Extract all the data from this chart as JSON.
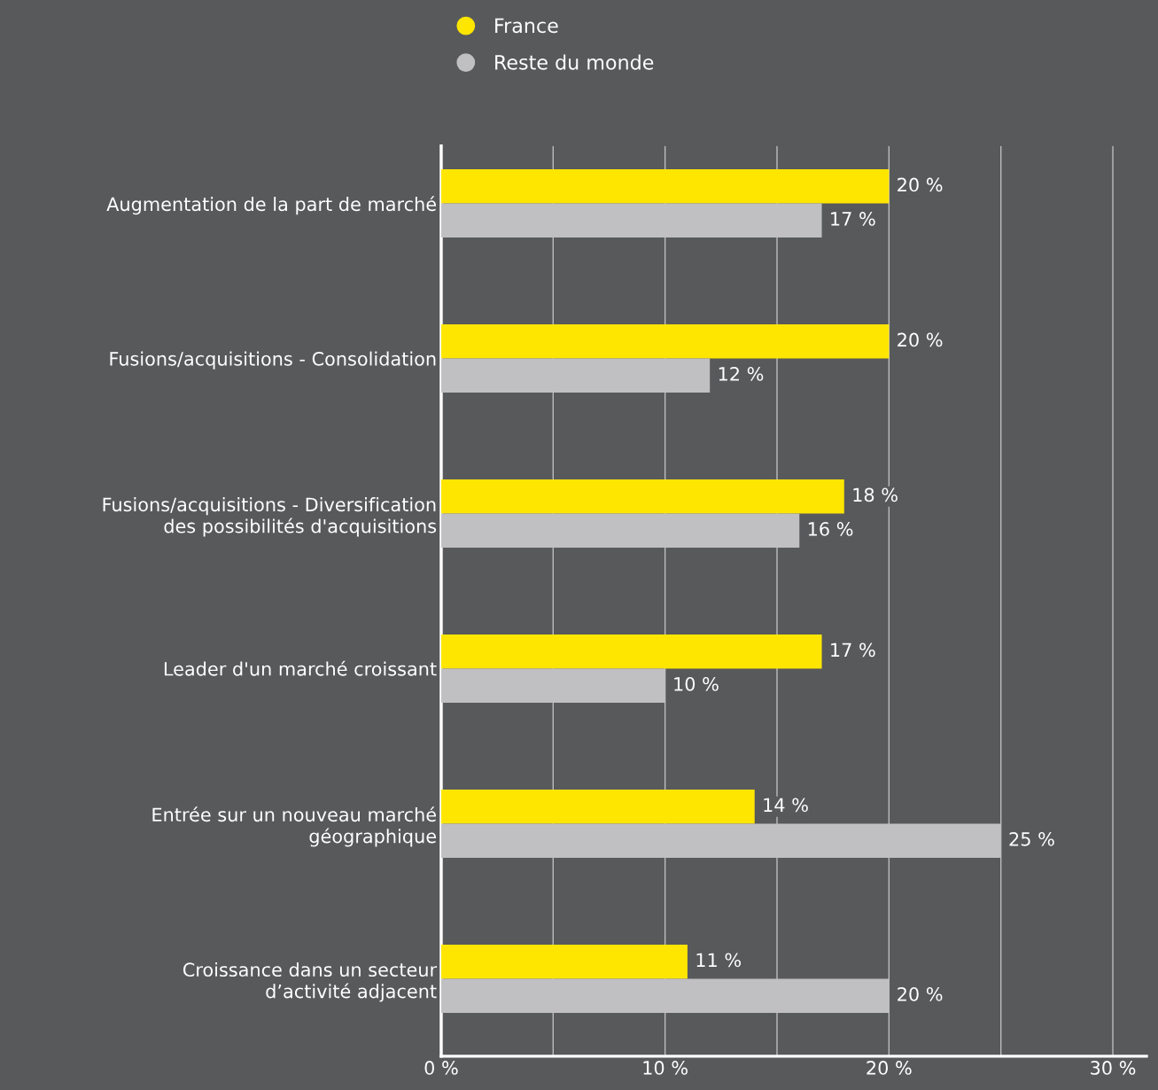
{
  "chart_data": {
    "type": "bar",
    "orientation": "horizontal",
    "categories": [
      "Augmentation de la part de marché",
      "Fusions/acquisitions - Consolidation",
      "Fusions/acquisitions - Diversification\ndes possibilités d'acquisitions",
      "Leader d'un marché croissant",
      "Entrée sur un nouveau marché\ngéographique",
      "Croissance dans un secteur\nd’activité adjacent"
    ],
    "series": [
      {
        "name": "France",
        "color": "#ffe600",
        "values": [
          20,
          20,
          18,
          17,
          14,
          11
        ],
        "value_labels": [
          "20 %",
          "20 %",
          "18 %",
          "17 %",
          "14 %",
          "11 %"
        ]
      },
      {
        "name": "Reste du monde",
        "color": "#c0c0c2",
        "values": [
          17,
          12,
          16,
          10,
          25,
          20
        ],
        "value_labels": [
          "17 %",
          "12 %",
          "16 %",
          "10 %",
          "25 %",
          "20 %"
        ]
      }
    ],
    "xlim": [
      0,
      31.5
    ],
    "xticks": [
      {
        "value": 0,
        "label": "0 %"
      },
      {
        "value": 5,
        "label": null
      },
      {
        "value": 10,
        "label": "10 %"
      },
      {
        "value": 15,
        "label": null
      },
      {
        "value": 20,
        "label": "20 %"
      },
      {
        "value": 25,
        "label": null
      },
      {
        "value": 30,
        "label": "30 %"
      }
    ],
    "grid": "x",
    "legend": "top"
  }
}
